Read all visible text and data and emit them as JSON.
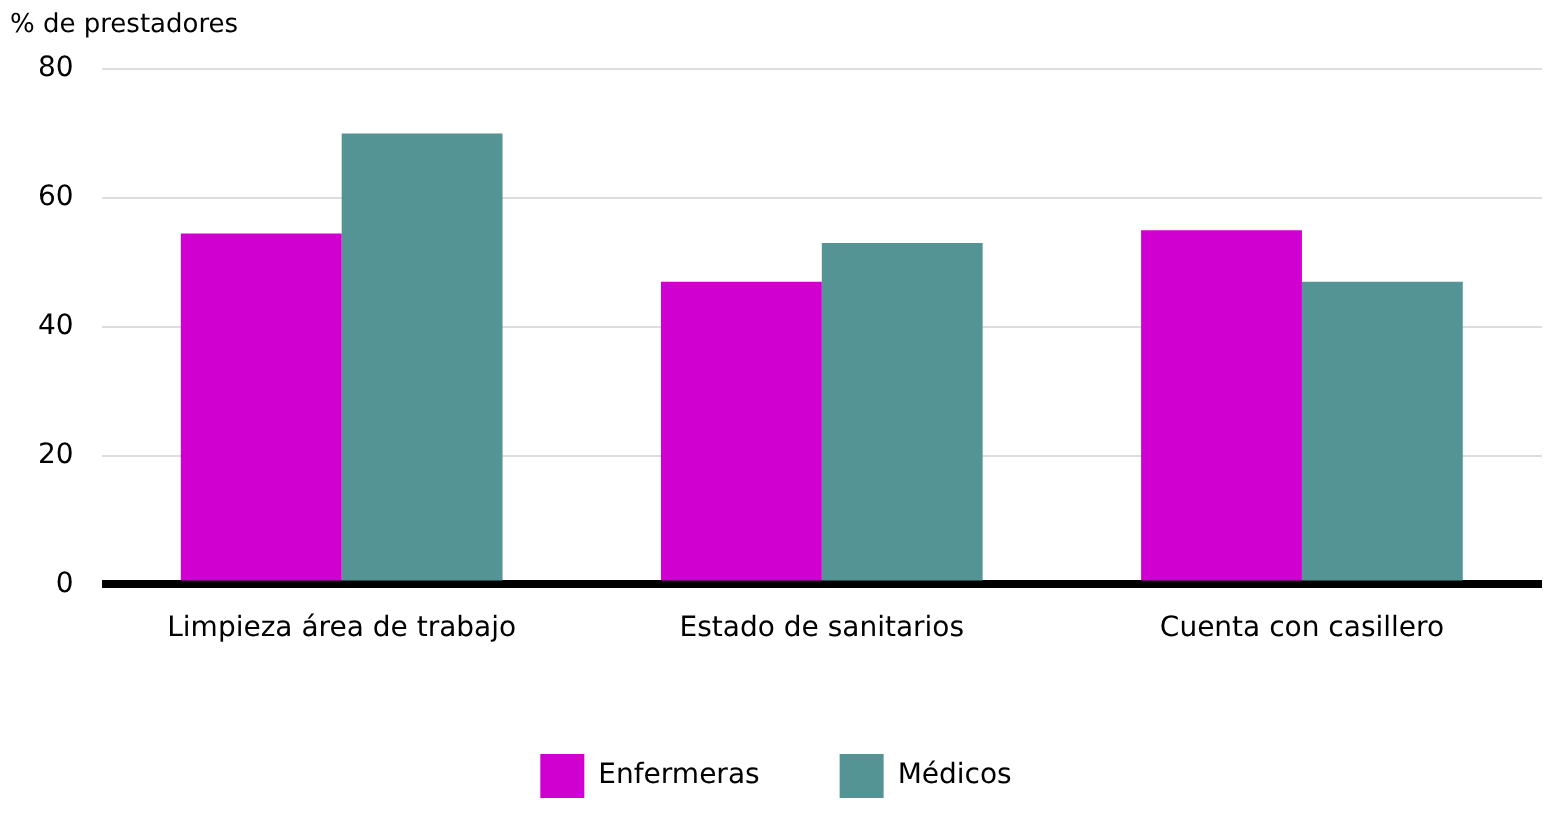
{
  "chart_data": {
    "type": "bar",
    "ylabel": "% de prestadores",
    "categories": [
      "Limpieza área de trabajo",
      "Estado de sanitarios",
      "Cuenta con casillero"
    ],
    "series": [
      {
        "name": "Enfermeras",
        "color": "#d000d0",
        "values": [
          54.5,
          47,
          55
        ]
      },
      {
        "name": "Médicos",
        "color": "#559494",
        "values": [
          70,
          53,
          47
        ]
      }
    ],
    "ylim": [
      0,
      80
    ],
    "yticks": [
      0,
      20,
      40,
      60,
      80
    ],
    "grid": "y",
    "legend": "bottom"
  }
}
